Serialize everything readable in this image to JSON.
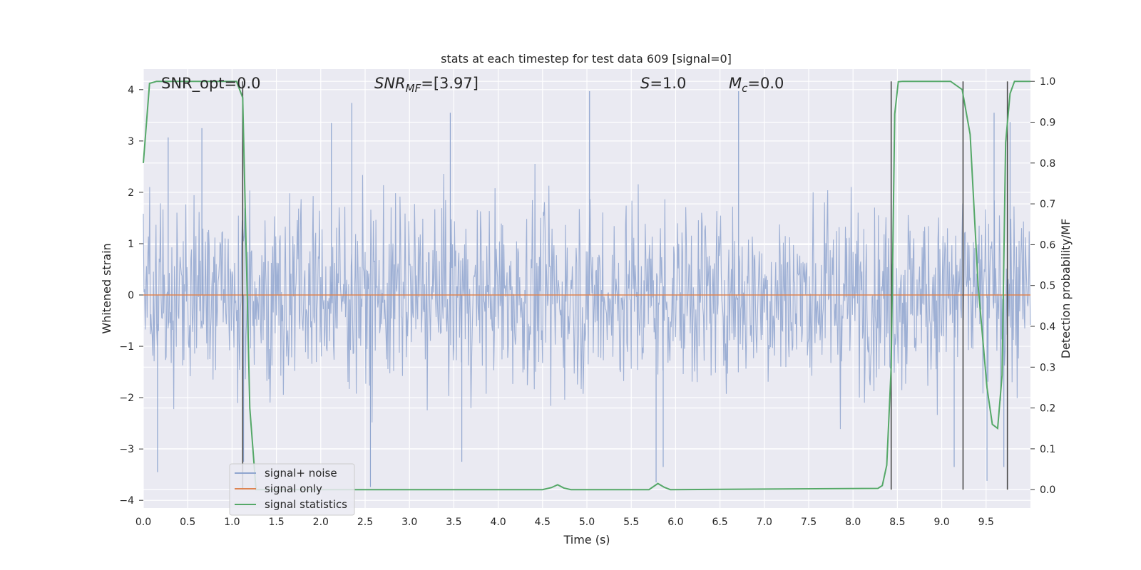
{
  "chart_data": {
    "type": "line",
    "title": "stats at each timestep for test data 609 [signal=0]",
    "xlabel": "Time (s)",
    "ylabel": "Whitened strain",
    "y2label": "Detection probability/MF",
    "xlim": [
      0.0,
      10.0
    ],
    "ylim": [
      -4.15,
      4.4
    ],
    "y2lim": [
      -0.045,
      1.03
    ],
    "x_ticks": [
      "0.0",
      "0.5",
      "1.0",
      "1.5",
      "2.0",
      "2.5",
      "3.0",
      "3.5",
      "4.0",
      "4.5",
      "5.0",
      "5.5",
      "6.0",
      "6.5",
      "7.0",
      "7.5",
      "8.0",
      "8.5",
      "9.0",
      "9.5"
    ],
    "y_ticks": [
      {
        "v": 4,
        "label": "4"
      },
      {
        "v": 3,
        "label": "3"
      },
      {
        "v": 2,
        "label": "2"
      },
      {
        "v": 1,
        "label": "1"
      },
      {
        "v": 0,
        "label": "0"
      },
      {
        "v": -1,
        "label": "−1"
      },
      {
        "v": -2,
        "label": "−2"
      },
      {
        "v": -3,
        "label": "−3"
      },
      {
        "v": -4,
        "label": "−4"
      }
    ],
    "y2_ticks": [
      "1.0",
      "0.9",
      "0.8",
      "0.7",
      "0.6",
      "0.5",
      "0.4",
      "0.3",
      "0.2",
      "0.1",
      "0.0"
    ],
    "annotations": {
      "snr_opt": "SNR_opt=0.0",
      "snr_mf_main": "SNR",
      "snr_mf_sub": "MF",
      "snr_mf_value": "=[3.97]",
      "s_main": "S",
      "s_value": "=1.0",
      "mc_main": "M",
      "mc_sub": "c",
      "mc_value": "=0.0"
    },
    "grid": true,
    "legend_position": "lower-left",
    "series": [
      {
        "name": "signal+ noise",
        "color": "#8fa5cf",
        "description_kind": "noise",
        "envelope_abs_max": 4.0,
        "notable_peaks": [
          {
            "x": 5.03,
            "y": 3.97
          },
          {
            "x": 6.71,
            "y": 3.97
          },
          {
            "x": 2.35,
            "y": 3.74
          },
          {
            "x": 2.12,
            "y": 3.35
          },
          {
            "x": 3.46,
            "y": 3.55
          },
          {
            "x": 0.66,
            "y": 3.25
          },
          {
            "x": 0.28,
            "y": 3.07
          },
          {
            "x": 9.59,
            "y": 3.55
          },
          {
            "x": 9.77,
            "y": 3.37
          },
          {
            "x": 0.16,
            "y": -3.45
          },
          {
            "x": 2.56,
            "y": -3.74
          },
          {
            "x": 5.78,
            "y": -3.65
          },
          {
            "x": 5.86,
            "y": -3.35
          },
          {
            "x": 9.14,
            "y": -3.35
          },
          {
            "x": 9.51,
            "y": -3.62
          },
          {
            "x": 9.7,
            "y": -3.35
          },
          {
            "x": 1.13,
            "y": -3.25
          },
          {
            "x": 3.59,
            "y": -3.25
          }
        ]
      },
      {
        "name": "signal only",
        "color": "#dd8452",
        "x": [
          0.0,
          10.0
        ],
        "y": [
          0.0,
          0.0
        ]
      },
      {
        "name": "signal statistics",
        "color": "#55a868",
        "axis": "right",
        "x": [
          0.0,
          0.07,
          0.15,
          1.05,
          1.12,
          1.2,
          1.27,
          1.35,
          4.5,
          4.6,
          4.67,
          4.74,
          4.82,
          5.7,
          5.8,
          5.87,
          5.94,
          8.28,
          8.33,
          8.38,
          8.43,
          8.47,
          8.51,
          8.56,
          9.1,
          9.23,
          9.32,
          9.41,
          9.51,
          9.57,
          9.63,
          9.68,
          9.72,
          9.77,
          9.82,
          9.87,
          10.0
        ],
        "y": [
          0.8,
          0.995,
          1.0,
          1.0,
          0.96,
          0.2,
          0.0,
          0.0,
          0.0,
          0.005,
          0.012,
          0.004,
          0.0,
          0.0,
          0.015,
          0.006,
          0.0,
          0.003,
          0.01,
          0.06,
          0.3,
          0.92,
          0.999,
          1.0,
          1.0,
          0.98,
          0.87,
          0.5,
          0.25,
          0.16,
          0.15,
          0.28,
          0.85,
          0.97,
          1.0,
          1.0,
          1.0
        ]
      }
    ],
    "threshold_lines_x": [
      1.12,
      8.43,
      9.24,
      9.74
    ]
  }
}
